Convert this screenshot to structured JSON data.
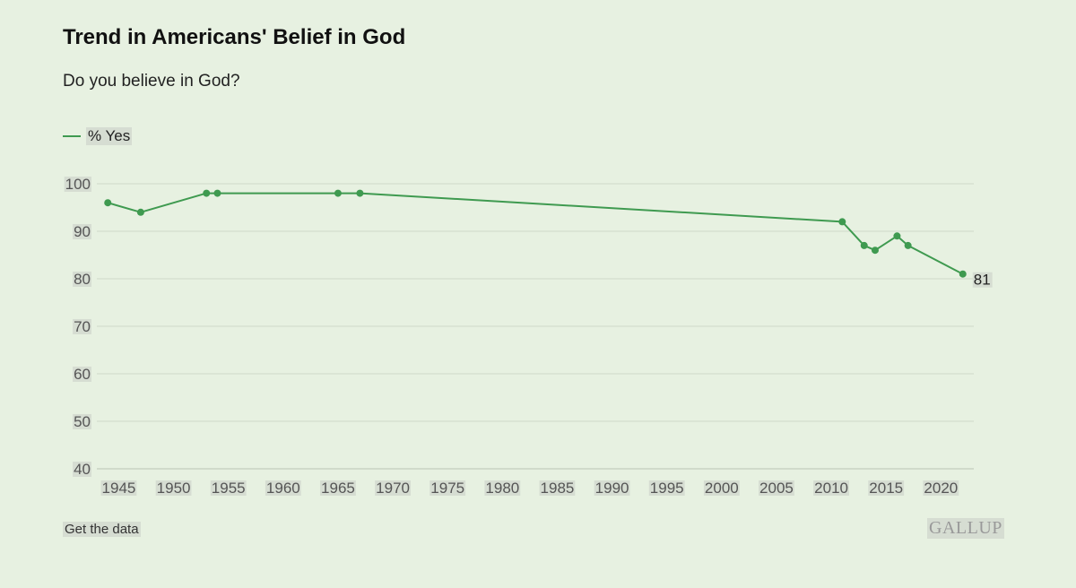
{
  "header": {
    "title": "Trend in Americans' Belief in God",
    "subtitle": "Do you believe in God?"
  },
  "legend": {
    "label": "% Yes",
    "color": "#3f9a50"
  },
  "footer": {
    "link_label": "Get the data",
    "brand": "GALLUP"
  },
  "chart_data": {
    "type": "line",
    "title": "Trend in Americans' Belief in God",
    "subtitle": "Do you believe in God?",
    "xlabel": "",
    "ylabel": "",
    "xlim": [
      1943,
      2023
    ],
    "ylim": [
      40,
      100
    ],
    "x_ticks": [
      1945,
      1950,
      1955,
      1960,
      1965,
      1970,
      1975,
      1980,
      1985,
      1990,
      1995,
      2000,
      2005,
      2010,
      2015,
      2020
    ],
    "y_ticks": [
      40,
      50,
      60,
      70,
      80,
      90,
      100
    ],
    "grid": true,
    "legend_position": "top-left",
    "series": [
      {
        "name": "% Yes",
        "color": "#3f9a50",
        "x": [
          1944,
          1947,
          1953,
          1954,
          1965,
          1967,
          2011,
          2013,
          2014,
          2016,
          2017,
          2022
        ],
        "values": [
          96,
          94,
          98,
          98,
          98,
          98,
          92,
          87,
          86,
          89,
          87,
          81
        ]
      }
    ],
    "end_label": "81"
  }
}
